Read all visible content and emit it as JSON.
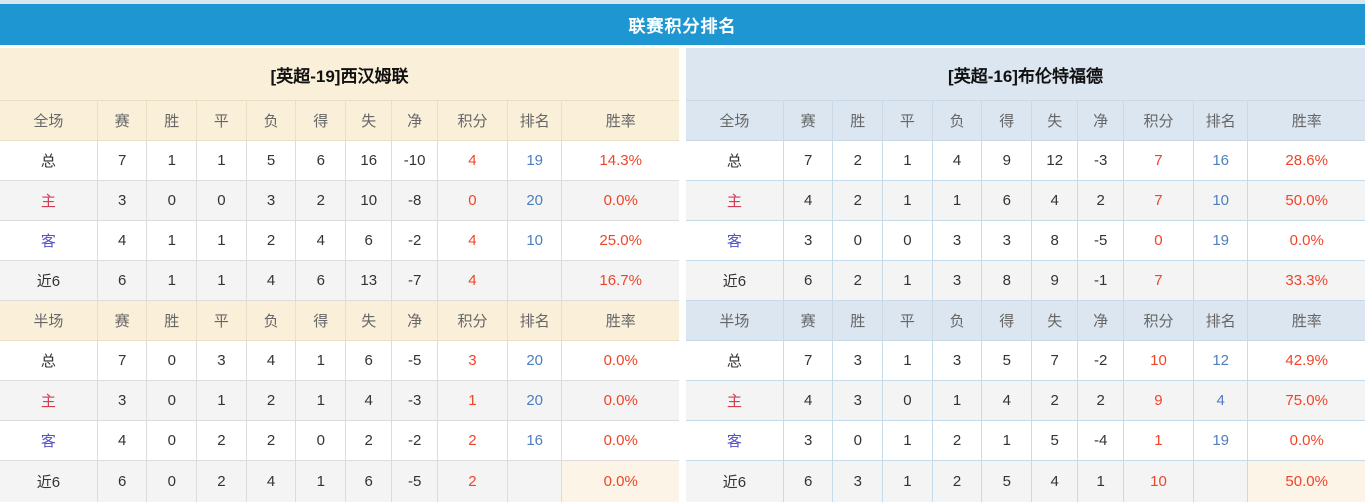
{
  "title": "联赛积分排名",
  "colors": {
    "top_strip": "#D8E6F0",
    "title_bar": "#1E96D2",
    "title_text": "#FFFFFF",
    "left_header_bg": "#FAF0DA",
    "left_header_border": "#EBDFC4",
    "right_header_bg": "#DCE6F1",
    "right_header_border": "#C9D9E8",
    "left_cell_border": "#DCDCDC",
    "right_cell_border": "#C5DBE9",
    "alt_row_bg": "#F4F4F4",
    "header_text": "#666666",
    "cell_text": "#333333",
    "points_red": "#F04428",
    "rank_blue": "#4D7EC0",
    "home_label_red": "#D23B52",
    "away_label_blue": "#5452C6",
    "highlight_cell_bg": "#FCF4E6"
  },
  "columns": [
    "赛",
    "胜",
    "平",
    "负",
    "得",
    "失",
    "净",
    "积分",
    "排名",
    "胜率"
  ],
  "column_widths": [
    "14.3%",
    "7.3%",
    "7.3%",
    "7.3%",
    "7.3%",
    "7.3%",
    "6.8%",
    "6.7%",
    "10.3%",
    "8%",
    "17.2%"
  ],
  "teams": [
    {
      "name": "[英超-19]西汉姆联",
      "theme": "cream",
      "sections": [
        {
          "label": "全场",
          "rows": [
            {
              "label": "总",
              "cells": [
                "7",
                "1",
                "1",
                "5",
                "6",
                "16",
                "-10",
                "4",
                "19",
                "14.3%"
              ]
            },
            {
              "label": "主",
              "cells": [
                "3",
                "0",
                "0",
                "3",
                "2",
                "10",
                "-8",
                "0",
                "20",
                "0.0%"
              ]
            },
            {
              "label": "客",
              "cells": [
                "4",
                "1",
                "1",
                "2",
                "4",
                "6",
                "-2",
                "4",
                "10",
                "25.0%"
              ]
            },
            {
              "label": "近6",
              "cells": [
                "6",
                "1",
                "1",
                "4",
                "6",
                "13",
                "-7",
                "4",
                "",
                "16.7%"
              ]
            }
          ]
        },
        {
          "label": "半场",
          "rows": [
            {
              "label": "总",
              "cells": [
                "7",
                "0",
                "3",
                "4",
                "1",
                "6",
                "-5",
                "3",
                "20",
                "0.0%"
              ]
            },
            {
              "label": "主",
              "cells": [
                "3",
                "0",
                "1",
                "2",
                "1",
                "4",
                "-3",
                "1",
                "20",
                "0.0%"
              ]
            },
            {
              "label": "客",
              "cells": [
                "4",
                "0",
                "2",
                "2",
                "0",
                "2",
                "-2",
                "2",
                "16",
                "0.0%"
              ]
            },
            {
              "label": "近6",
              "cells": [
                "6",
                "0",
                "2",
                "4",
                "1",
                "6",
                "-5",
                "2",
                "",
                "0.0%"
              ]
            }
          ]
        }
      ]
    },
    {
      "name": "[英超-16]布伦特福德",
      "theme": "blue",
      "sections": [
        {
          "label": "全场",
          "rows": [
            {
              "label": "总",
              "cells": [
                "7",
                "2",
                "1",
                "4",
                "9",
                "12",
                "-3",
                "7",
                "16",
                "28.6%"
              ]
            },
            {
              "label": "主",
              "cells": [
                "4",
                "2",
                "1",
                "1",
                "6",
                "4",
                "2",
                "7",
                "10",
                "50.0%"
              ]
            },
            {
              "label": "客",
              "cells": [
                "3",
                "0",
                "0",
                "3",
                "3",
                "8",
                "-5",
                "0",
                "19",
                "0.0%"
              ]
            },
            {
              "label": "近6",
              "cells": [
                "6",
                "2",
                "1",
                "3",
                "8",
                "9",
                "-1",
                "7",
                "",
                "33.3%"
              ]
            }
          ]
        },
        {
          "label": "半场",
          "rows": [
            {
              "label": "总",
              "cells": [
                "7",
                "3",
                "1",
                "3",
                "5",
                "7",
                "-2",
                "10",
                "12",
                "42.9%"
              ]
            },
            {
              "label": "主",
              "cells": [
                "4",
                "3",
                "0",
                "1",
                "4",
                "2",
                "2",
                "9",
                "4",
                "75.0%"
              ]
            },
            {
              "label": "客",
              "cells": [
                "3",
                "0",
                "1",
                "2",
                "1",
                "5",
                "-4",
                "1",
                "19",
                "0.0%"
              ]
            },
            {
              "label": "近6",
              "cells": [
                "6",
                "3",
                "1",
                "2",
                "5",
                "4",
                "1",
                "10",
                "",
                "50.0%"
              ]
            }
          ]
        }
      ]
    }
  ]
}
